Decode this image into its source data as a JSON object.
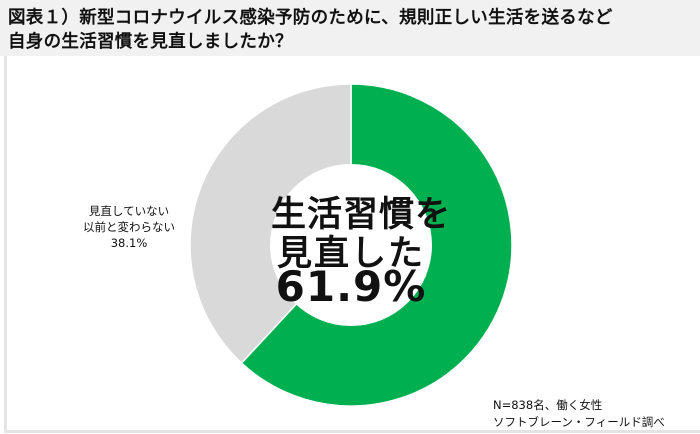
{
  "title": {
    "line1": "図表１）新型コロナウイルス感染予防のために、規則正しい生活を送るなど",
    "line2": "自身の生活習慣を見直しましたか？"
  },
  "center_label": {
    "line1": "生活習慣を",
    "line2": "見直した",
    "value": "61.9%"
  },
  "side_label": {
    "line1": "見直していない",
    "line2": "以前と変わらない",
    "value": "38.1%"
  },
  "note": {
    "line1": "N=838名、働く女性",
    "line2": "ソフトブレーン・フィールド調べ"
  },
  "colors": {
    "green": "#00b050",
    "gray": "#d9d9d9",
    "title_bg": "#f1f1f1"
  },
  "chart_data": {
    "type": "pie",
    "variant": "donut",
    "title": "図表１）新型コロナウイルス感染予防のために、規則正しい生活を送るなど自身の生活習慣を見直しましたか？",
    "categories": [
      "生活習慣を見直した",
      "見直していない 以前と変わらない"
    ],
    "values": [
      61.9,
      38.1
    ],
    "unit": "%",
    "colors": [
      "#00b050",
      "#d9d9d9"
    ],
    "start_angle": "12 o'clock, clockwise",
    "annotations": [
      "N=838名、働く女性",
      "ソフトブレーン・フィールド調べ"
    ],
    "legend": "none (direct labels)"
  }
}
